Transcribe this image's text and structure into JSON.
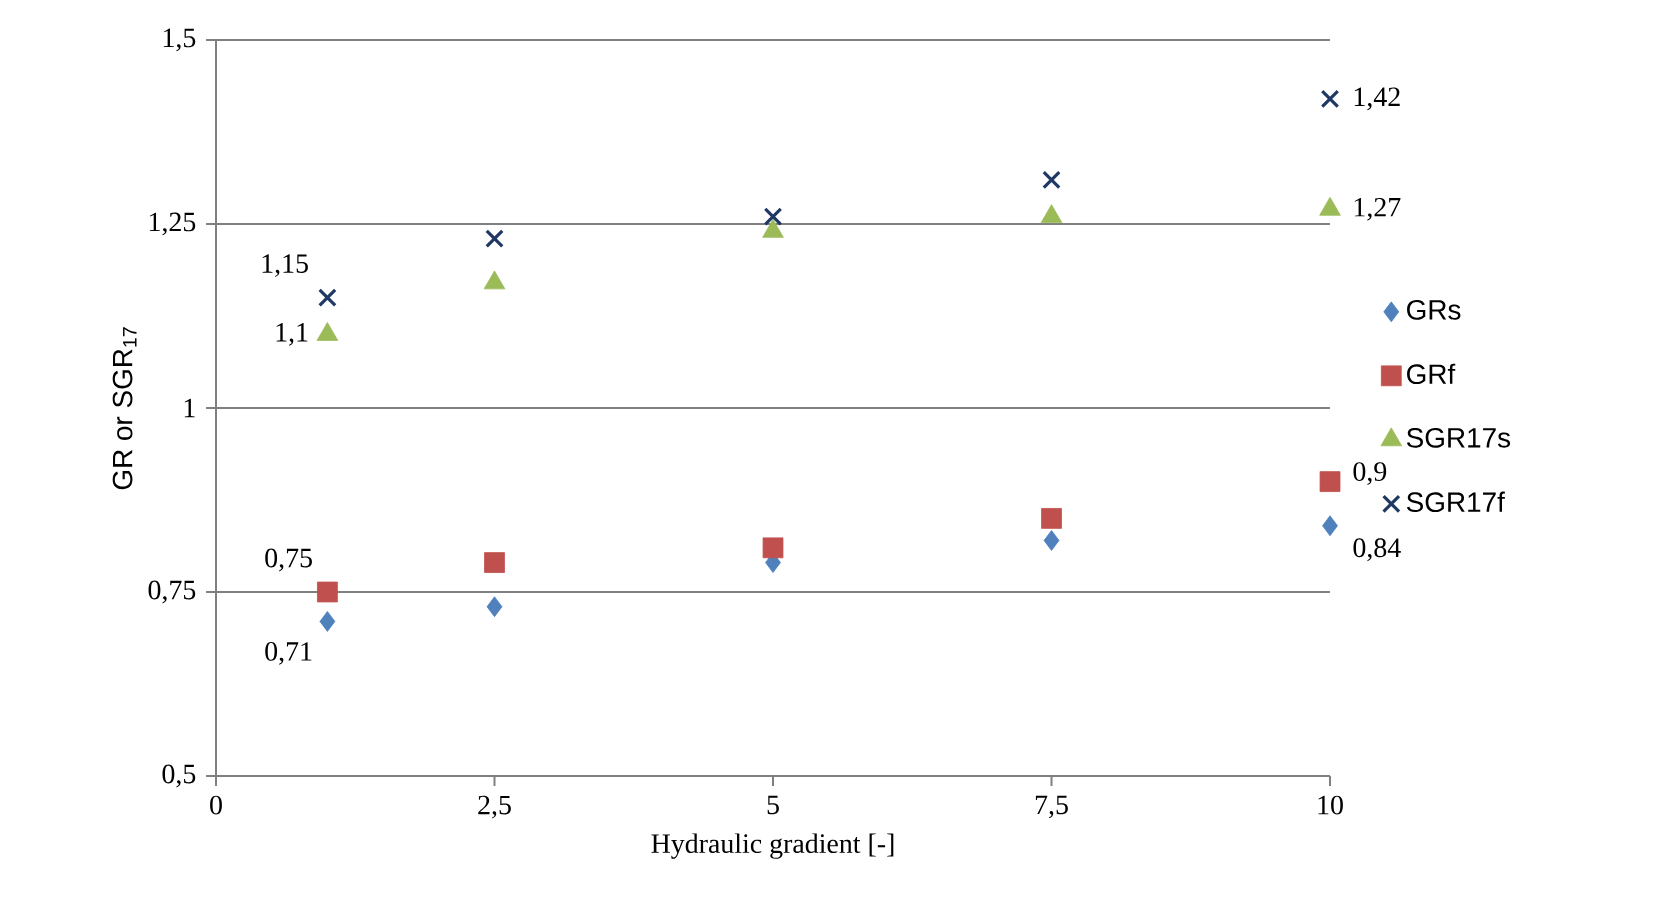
{
  "chart_data": {
    "type": "scatter",
    "xlabel": "Hydraulic gradient [-]",
    "ylabel": "GR or SGR$_{17}$",
    "x": [
      1,
      2.5,
      5,
      7.5,
      10
    ],
    "series": [
      {
        "name": "GRs",
        "color": "#4f81bd",
        "marker": "diamond",
        "values": [
          0.71,
          0.73,
          0.79,
          0.82,
          0.84
        ],
        "value_labels": [
          "0,71",
          null,
          null,
          null,
          "0,84"
        ]
      },
      {
        "name": "GRf",
        "color": "#c0504d",
        "marker": "square",
        "values": [
          0.75,
          0.79,
          0.81,
          0.85,
          0.9
        ],
        "value_labels": [
          "0,75",
          null,
          null,
          null,
          "0,9"
        ]
      },
      {
        "name": "SGR17s",
        "color": "#9bbb59",
        "marker": "triangle",
        "values": [
          1.1,
          1.17,
          1.24,
          1.26,
          1.27
        ],
        "value_labels": [
          "1,1",
          null,
          null,
          null,
          "1,27"
        ]
      },
      {
        "name": "SGR17f",
        "color": "#1f3864",
        "marker": "cross",
        "values": [
          1.15,
          1.23,
          1.26,
          1.31,
          1.42
        ],
        "value_labels": [
          "1,15",
          null,
          null,
          null,
          "1,42"
        ]
      }
    ],
    "xlim": [
      0,
      10
    ],
    "xticks": [
      0,
      {
        "value": 2.5,
        "label": "2,5"
      },
      5,
      {
        "value": 7.5,
        "label": "7,5"
      },
      10
    ],
    "ylim": [
      0.5,
      1.5
    ],
    "yticks": [
      {
        "value": 0.5,
        "label": "0,5"
      },
      {
        "value": 0.75,
        "label": "0,75"
      },
      1,
      {
        "value": 1.25,
        "label": "1,25"
      },
      {
        "value": 1.5,
        "label": "1,5"
      }
    ],
    "grid": "y",
    "legend": "right"
  }
}
